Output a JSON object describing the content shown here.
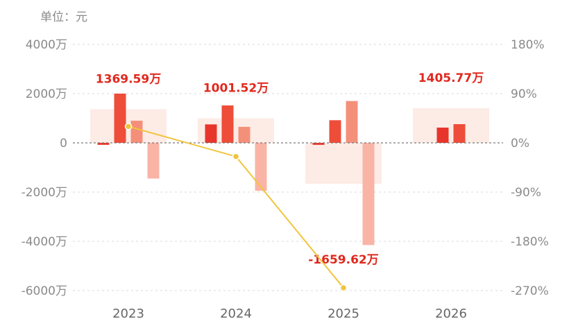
{
  "unit_label": "单位：元",
  "chart_data": {
    "type": "bar",
    "categories": [
      "2023",
      "2024",
      "2025",
      "2026"
    ],
    "left_axis": {
      "ticks": [
        "4000万",
        "2000万",
        "0",
        "-2000万",
        "-4000万",
        "-6000万"
      ],
      "min": -6000,
      "max": 4000
    },
    "right_axis": {
      "ticks": [
        "180%",
        "90%",
        "0%",
        "-90%",
        "-180%",
        "-270%"
      ],
      "min": -270,
      "max": 180
    },
    "series": [
      {
        "values": [
          -80,
          750,
          -80,
          620
        ],
        "color": "#e8352b"
      },
      {
        "values": [
          2000,
          1520,
          920,
          760
        ],
        "color": "#ee4d3a"
      },
      {
        "values": [
          900,
          650,
          1700,
          null
        ],
        "color": "#f4907a"
      },
      {
        "values": [
          -1450,
          -1950,
          -4150,
          null
        ],
        "color": "#f9b4a6"
      }
    ],
    "totals": [
      {
        "label": "1369.59万",
        "value": 1369.59
      },
      {
        "label": "1001.52万",
        "value": 1001.52
      },
      {
        "label": "-1659.62万",
        "value": -1659.62
      },
      {
        "label": "1405.77万",
        "value": 1405.77
      }
    ],
    "growth_line": {
      "values": [
        30,
        -25,
        -265,
        null
      ],
      "color": "#f0c53c"
    },
    "colors": {
      "total_band": "#fdebe6",
      "total_label": "#e0281e",
      "axis_text": "#8a8a8a",
      "grid": "#d8d8d8",
      "zero_line": "#777777"
    }
  }
}
